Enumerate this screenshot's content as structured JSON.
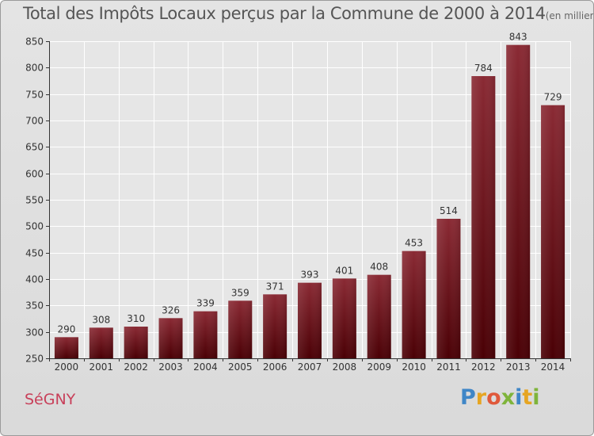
{
  "title": "Total des Impôts Locaux perçus par la Commune de 2000 à 2014",
  "unit_note": "(en milliers d'€)",
  "commune": "SéGNY",
  "brand": {
    "letters": [
      "P",
      "r",
      "o",
      "x",
      "i",
      "t",
      "i"
    ],
    "colors": [
      "#3f86c7",
      "#e6a522",
      "#e0593b",
      "#7fb43b",
      "#3f86c7",
      "#e6a522",
      "#7fb43b"
    ]
  },
  "chart_data": {
    "type": "bar",
    "title": "Total des Impôts Locaux perçus par la Commune de 2000 à 2014",
    "xlabel": "",
    "ylabel": "",
    "ylim": [
      250,
      850
    ],
    "yticks": [
      250,
      300,
      350,
      400,
      450,
      500,
      550,
      600,
      650,
      700,
      750,
      800,
      850
    ],
    "grid": true,
    "categories": [
      "2000",
      "2001",
      "2002",
      "2003",
      "2004",
      "2005",
      "2006",
      "2007",
      "2008",
      "2009",
      "2010",
      "2011",
      "2012",
      "2013",
      "2014"
    ],
    "values": [
      290,
      308,
      310,
      326,
      339,
      359,
      371,
      393,
      401,
      408,
      453,
      514,
      784,
      843,
      729
    ],
    "bar_color": "#7a1a22"
  }
}
